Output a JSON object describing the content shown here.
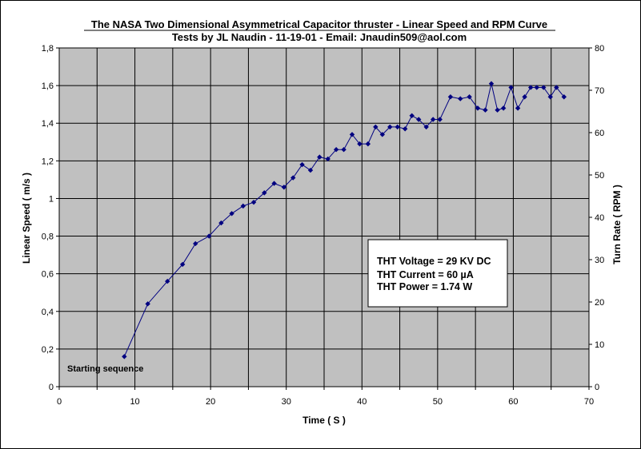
{
  "chart_data": {
    "type": "line",
    "title": "The NASA Two Dimensional Asymmetrical Capacitor thruster -  Linear Speed and RPM Curve",
    "subtitle": "Tests by JL Naudin - 11-19-01 - Email: Jnaudin509@aol.com",
    "xlabel": "Time ( S )",
    "ylabel": "Linear Speed ( m/s )",
    "y2label": "Turn Rate ( RPM )",
    "xlim": [
      0,
      70
    ],
    "ylim": [
      0,
      1.8
    ],
    "y2lim": [
      0,
      80
    ],
    "x_ticks": [
      "0",
      "10",
      "20",
      "30",
      "40",
      "50",
      "60",
      "70"
    ],
    "y_ticks": [
      "0",
      "0,2",
      "0,4",
      "0,6",
      "0,8",
      "1",
      "1,2",
      "1,4",
      "1,6",
      "1,8"
    ],
    "y2_ticks": [
      "0",
      "10",
      "20",
      "30",
      "40",
      "50",
      "60",
      "70",
      "80"
    ],
    "grid": true,
    "plot_background": "#c0c0c0",
    "series_color": "#000080",
    "series": [
      {
        "points": [
          [
            8.6,
            0.16
          ],
          [
            11.7,
            0.44
          ],
          [
            14.3,
            0.56
          ],
          [
            16.3,
            0.65
          ],
          [
            18.0,
            0.76
          ],
          [
            19.8,
            0.8
          ],
          [
            21.4,
            0.87
          ],
          [
            22.8,
            0.92
          ],
          [
            24.3,
            0.96
          ],
          [
            25.7,
            0.98
          ],
          [
            27.1,
            1.03
          ],
          [
            28.4,
            1.08
          ],
          [
            29.7,
            1.06
          ],
          [
            30.9,
            1.11
          ],
          [
            32.1,
            1.18
          ],
          [
            33.2,
            1.15
          ],
          [
            34.4,
            1.22
          ],
          [
            35.5,
            1.21
          ],
          [
            36.6,
            1.26
          ],
          [
            37.6,
            1.26
          ],
          [
            38.7,
            1.34
          ],
          [
            39.7,
            1.29
          ],
          [
            40.8,
            1.29
          ],
          [
            41.8,
            1.38
          ],
          [
            42.7,
            1.34
          ],
          [
            43.7,
            1.38
          ],
          [
            44.7,
            1.38
          ],
          [
            45.7,
            1.37
          ],
          [
            46.6,
            1.44
          ],
          [
            47.5,
            1.42
          ],
          [
            48.5,
            1.38
          ],
          [
            49.4,
            1.42
          ],
          [
            50.3,
            1.42
          ],
          [
            51.7,
            1.54
          ],
          [
            53.0,
            1.53
          ],
          [
            54.2,
            1.54
          ],
          [
            55.3,
            1.48
          ],
          [
            56.3,
            1.47
          ],
          [
            57.1,
            1.61
          ],
          [
            57.9,
            1.47
          ],
          [
            58.7,
            1.48
          ],
          [
            59.7,
            1.59
          ],
          [
            60.6,
            1.48
          ],
          [
            61.5,
            1.54
          ],
          [
            62.3,
            1.59
          ],
          [
            63.1,
            1.59
          ],
          [
            64.0,
            1.59
          ],
          [
            64.9,
            1.54
          ],
          [
            65.7,
            1.59
          ],
          [
            66.7,
            1.54
          ]
        ]
      }
    ],
    "annotations": {
      "start_label": "Starting sequence",
      "info_lines": [
        "THT Voltage = 29 KV DC",
        "THT Current = 60 µA",
        "THT Power  = 1.74 W"
      ]
    }
  }
}
